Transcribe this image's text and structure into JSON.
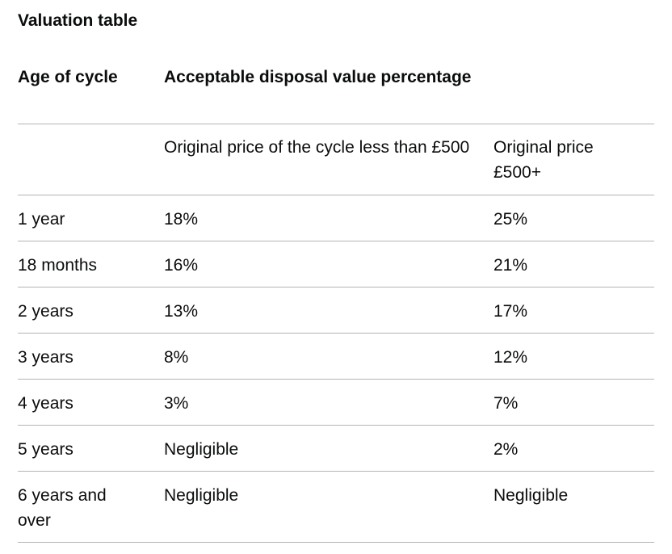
{
  "caption": "Valuation table",
  "header": {
    "col1": "Age of cycle",
    "col2": "Acceptable disposal value percentage",
    "col3": ""
  },
  "subheader": {
    "col1": "",
    "col2": "Original price of the cycle less than £500",
    "col3": "Original price £500+"
  },
  "rows": [
    {
      "age": "1 year",
      "under500": "18%",
      "over500": "25%"
    },
    {
      "age": "18 months",
      "under500": "16%",
      "over500": "21%"
    },
    {
      "age": "2 years",
      "under500": "13%",
      "over500": "17%"
    },
    {
      "age": "3 years",
      "under500": "8%",
      "over500": "12%"
    },
    {
      "age": "4 years",
      "under500": "3%",
      "over500": "7%"
    },
    {
      "age": "5 years",
      "under500": "Negligible",
      "over500": "2%"
    },
    {
      "age": "6 years and over",
      "under500": "Negligible",
      "over500": "Negligible"
    }
  ]
}
